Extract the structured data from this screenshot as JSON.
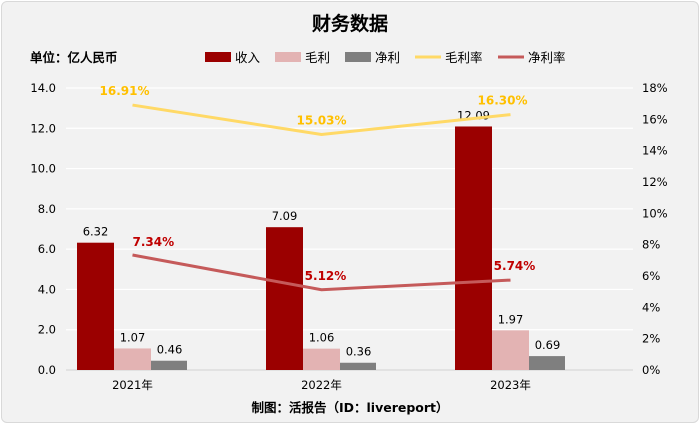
{
  "chart_data": {
    "type": "bar+line",
    "title": "财务数据",
    "unit_label": "单位：亿人民币",
    "source": "制图：活报告（ID：livereport）",
    "categories": [
      "2021年",
      "2022年",
      "2023年"
    ],
    "bar_series": [
      {
        "name": "收入",
        "values": [
          6.32,
          7.09,
          12.09
        ],
        "color": "#9B0000"
      },
      {
        "name": "毛利",
        "values": [
          1.07,
          1.06,
          1.97
        ],
        "color": "#E3B3B3"
      },
      {
        "name": "净利",
        "values": [
          0.46,
          0.36,
          0.69
        ],
        "color": "#7F7F7F"
      }
    ],
    "line_series": [
      {
        "name": "毛利率",
        "values": [
          16.91,
          15.03,
          16.3
        ],
        "labels": [
          "16.91%",
          "15.03%",
          "16.30%"
        ],
        "color": "#FFD966",
        "label_color": "#FFC000"
      },
      {
        "name": "净利率",
        "values": [
          7.34,
          5.12,
          5.74
        ],
        "labels": [
          "7.34%",
          "5.12%",
          "5.74%"
        ],
        "color": "#C55A5A",
        "label_color": "#C00000"
      }
    ],
    "y_left": {
      "range": [
        0,
        14
      ],
      "ticks": [
        "0.0",
        "2.0",
        "4.0",
        "6.0",
        "8.0",
        "10.0",
        "12.0",
        "14.0"
      ]
    },
    "y_right": {
      "range": [
        0,
        18
      ],
      "ticks": [
        "0%",
        "2%",
        "4%",
        "6%",
        "8%",
        "10%",
        "12%",
        "14%",
        "16%",
        "18%"
      ]
    },
    "grid": true,
    "legend_position": "top"
  }
}
